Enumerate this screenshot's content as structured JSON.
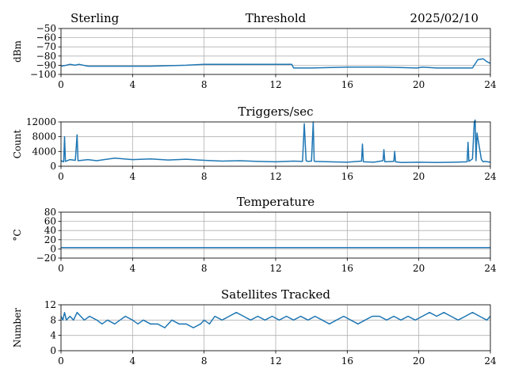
{
  "header": {
    "left": "Sterling",
    "right": "2025/02/10"
  },
  "colors": {
    "line": "#1f77b4",
    "grid": "#b0b0b0",
    "axis": "#000000"
  },
  "chart_data": [
    {
      "type": "line",
      "title": "Threshold",
      "ylabel": "dBm",
      "xlim": [
        0,
        24
      ],
      "ylim": [
        -100,
        -50
      ],
      "xticks": [
        0,
        4,
        8,
        12,
        16,
        20,
        24
      ],
      "yticks": [
        -100,
        -90,
        -80,
        -70,
        -60,
        -50
      ],
      "grid": true,
      "series": [
        {
          "x": [
            0,
            0.3,
            0.5,
            0.8,
            1.0,
            1.5,
            3,
            5,
            7,
            8,
            10,
            12,
            12.9,
            13.0,
            14,
            16,
            18,
            19.9,
            20.2,
            21,
            22,
            23.0,
            23.3,
            23.6,
            23.8,
            24
          ],
          "y": [
            -91,
            -90,
            -89,
            -90,
            -89,
            -91,
            -91,
            -91,
            -90,
            -89,
            -89,
            -89,
            -89,
            -93,
            -93,
            -92,
            -92,
            -93,
            -92,
            -93,
            -93,
            -93,
            -84,
            -83,
            -86,
            -88
          ]
        }
      ]
    },
    {
      "type": "line",
      "title": "Triggers/sec",
      "ylabel": "Count",
      "xlim": [
        0,
        24
      ],
      "ylim": [
        0,
        12000
      ],
      "xticks": [
        0,
        4,
        8,
        12,
        16,
        20,
        24
      ],
      "yticks": [
        0,
        4000,
        8000,
        12000
      ],
      "grid": true,
      "series": [
        {
          "x": [
            0,
            0.15,
            0.2,
            0.25,
            0.5,
            0.8,
            0.9,
            0.95,
            1.5,
            2,
            3,
            4,
            5,
            6,
            7,
            8,
            9,
            10,
            11,
            12,
            13,
            13.5,
            13.6,
            13.7,
            13.8,
            14,
            14.1,
            14.15,
            14.2,
            15,
            16,
            16.8,
            16.85,
            16.9,
            17.5,
            18,
            18.05,
            18.1,
            18.6,
            18.65,
            18.7,
            19,
            20,
            21,
            22,
            22.7,
            22.75,
            22.8,
            23,
            23.1,
            23.15,
            23.2,
            23.25,
            23.5,
            23.6,
            23.7,
            24
          ],
          "y": [
            1500,
            1200,
            8000,
            1300,
            1800,
            1600,
            8500,
            1500,
            1800,
            1500,
            2200,
            1800,
            2000,
            1700,
            1900,
            1600,
            1400,
            1500,
            1300,
            1200,
            1400,
            1300,
            11500,
            1500,
            1300,
            1400,
            12000,
            1400,
            1300,
            1200,
            1100,
            1400,
            6000,
            1200,
            1100,
            1500,
            4500,
            1200,
            1300,
            4000,
            1200,
            1000,
            1100,
            1000,
            1100,
            1200,
            6500,
            1300,
            2000,
            12000,
            12500,
            1500,
            9000,
            1800,
            1200,
            1300,
            1100
          ]
        }
      ]
    },
    {
      "type": "line",
      "title": "Temperature",
      "ylabel": "°C",
      "xlim": [
        0,
        24
      ],
      "ylim": [
        -20,
        80
      ],
      "xticks": [
        0,
        4,
        8,
        12,
        16,
        20,
        24
      ],
      "yticks": [
        -20,
        0,
        20,
        40,
        60,
        80
      ],
      "grid": true,
      "series": [
        {
          "x": [
            0,
            24
          ],
          "y": [
            3,
            3
          ]
        }
      ]
    },
    {
      "type": "line",
      "title": "Satellites Tracked",
      "ylabel": "Number",
      "xlim": [
        0,
        24
      ],
      "ylim": [
        0,
        12
      ],
      "xticks": [
        0,
        4,
        8,
        12,
        16,
        20,
        24
      ],
      "yticks": [
        0,
        4,
        8,
        12
      ],
      "grid": true,
      "series": [
        {
          "x": [
            0,
            0.1,
            0.2,
            0.3,
            0.5,
            0.7,
            0.9,
            1.1,
            1.3,
            1.6,
            2,
            2.3,
            2.6,
            3,
            3.3,
            3.6,
            4,
            4.3,
            4.6,
            5,
            5.4,
            5.8,
            6.2,
            6.6,
            7,
            7.4,
            7.8,
            8,
            8.3,
            8.6,
            9,
            9.4,
            9.8,
            10.2,
            10.6,
            11,
            11.4,
            11.8,
            12.2,
            12.6,
            13,
            13.4,
            13.8,
            14.2,
            14.6,
            15,
            15.4,
            15.8,
            16.2,
            16.6,
            17,
            17.4,
            17.8,
            18.2,
            18.6,
            19,
            19.4,
            19.8,
            20.2,
            20.6,
            21,
            21.4,
            21.8,
            22.2,
            22.6,
            23,
            23.4,
            23.8,
            24
          ],
          "y": [
            9,
            8,
            10,
            8,
            9,
            8,
            10,
            9,
            8,
            9,
            8,
            7,
            8,
            7,
            8,
            9,
            8,
            7,
            8,
            7,
            7,
            6,
            8,
            7,
            7,
            6,
            7,
            8,
            7,
            9,
            8,
            9,
            10,
            9,
            8,
            9,
            8,
            9,
            8,
            9,
            8,
            9,
            8,
            9,
            8,
            7,
            8,
            9,
            8,
            7,
            8,
            9,
            9,
            8,
            9,
            8,
            9,
            8,
            9,
            10,
            9,
            10,
            9,
            8,
            9,
            10,
            9,
            8,
            9
          ]
        }
      ]
    }
  ]
}
